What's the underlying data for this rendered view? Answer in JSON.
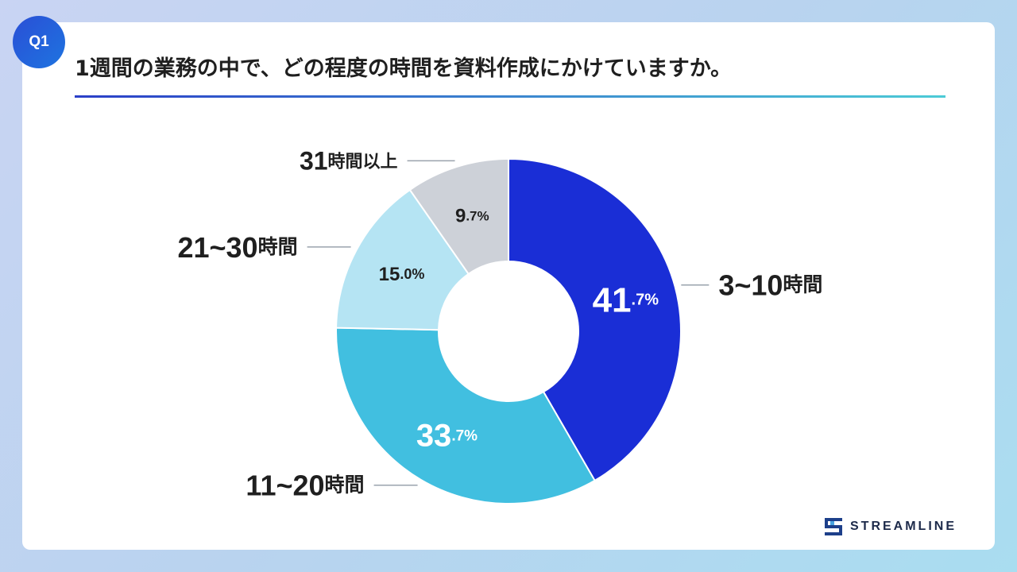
{
  "badge": "Q1",
  "title": "1週間の業務の中で、どの程度の時間を資料作成にかけていますか。",
  "brand": "STREAMLINE",
  "chart_data": {
    "type": "pie",
    "variant": "donut",
    "title": "1週間の業務の中で、どの程度の時間を資料作成にかけていますか。",
    "start": "top, clockwise",
    "slices": [
      {
        "category": "3~10",
        "unit": "時間",
        "value": 41.7,
        "int": "41",
        "dec": ".7%",
        "color": "#1a2ed6",
        "label_color": "#ffffff"
      },
      {
        "category": "11~20",
        "unit": "時間",
        "value": 33.7,
        "int": "33",
        "dec": ".7%",
        "color": "#41bfe0",
        "label_color": "#ffffff"
      },
      {
        "category": "21~30",
        "unit": "時間",
        "value": 15.0,
        "int": "15",
        "dec": ".0%",
        "color": "#b5e4f3",
        "label_color": "#1f1f1f"
      },
      {
        "category": "31",
        "unit": "時間以上",
        "value": 9.7,
        "int": "9",
        "dec": ".7%",
        "color": "#cdd1d8",
        "label_color": "#1f1f1f"
      }
    ]
  }
}
